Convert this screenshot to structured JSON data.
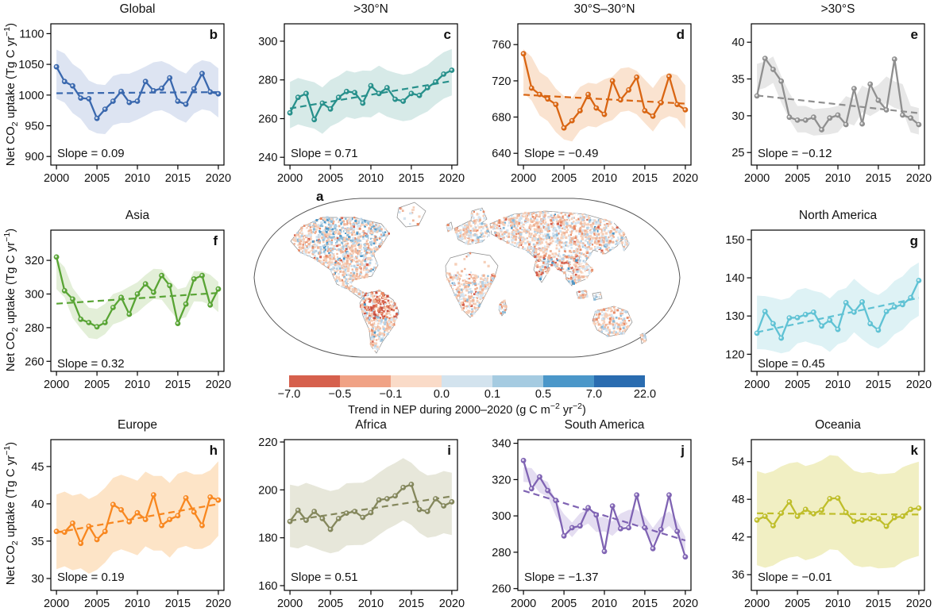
{
  "ylabel": {
    "pre": "Net CO",
    "sub": "2",
    "mid": " uptake (Tg C yr",
    "sup": "−1",
    "post": ")"
  },
  "chart_data": {
    "type": "line",
    "description": "Ten regional time series of net CO2 uptake (Tg C yr-1) 2000-2020 with confidence bands and dashed linear trends, plus central world map (panel a) of NEP trend.",
    "years": [
      2000,
      2001,
      2002,
      2003,
      2004,
      2005,
      2006,
      2007,
      2008,
      2009,
      2010,
      2011,
      2012,
      2013,
      2014,
      2015,
      2016,
      2017,
      2018,
      2019,
      2020
    ],
    "xticks": [
      "2000",
      "2005",
      "2010",
      "2015",
      "2020"
    ],
    "xlabel": "",
    "ylabel_text": "Net CO2 uptake (Tg C yr−1)",
    "panels": [
      {
        "id": "global",
        "title": "Global",
        "letter": "b",
        "slope": 0.09,
        "slope_label": "Slope = 0.09",
        "line_color": "#3a68ae",
        "band_color": "#dde4f2",
        "band_halfwidth": 40,
        "ylim": [
          886,
          1116
        ],
        "yticks": [
          900,
          950,
          1000,
          1050,
          1100
        ],
        "values": [
          1046,
          1022,
          1015,
          995,
          994,
          962,
          977,
          990,
          1006,
          988,
          990,
          1022,
          1007,
          1011,
          1028,
          990,
          985,
          1010,
          1035,
          1005,
          1002
        ]
      },
      {
        "id": "n30n",
        "title": ">30°N",
        "letter": "c",
        "slope": 0.71,
        "slope_label": "Slope = 0.71",
        "line_color": "#27908b",
        "band_color": "#d7eae8",
        "band_halfwidth": 12,
        "ylim": [
          236,
          309
        ],
        "yticks": [
          240,
          260,
          280,
          300
        ],
        "values": [
          263,
          271,
          273,
          259.5,
          268,
          265,
          271,
          274,
          273.5,
          268,
          277,
          273,
          276,
          270,
          269,
          273,
          272,
          276,
          279,
          283,
          285
        ]
      },
      {
        "id": "tropics",
        "title": "30°S–30°N",
        "letter": "d",
        "slope": -0.49,
        "slope_label": "Slope = −0.49",
        "line_color": "#d96512",
        "band_color": "#fae3d0",
        "band_halfwidth": 24,
        "ylim": [
          627,
          783
        ],
        "yticks": [
          640,
          680,
          720,
          760
        ],
        "values": [
          750,
          712,
          705,
          700,
          694,
          668,
          676,
          687,
          705,
          690,
          683,
          720,
          699,
          710,
          724,
          687,
          681,
          696,
          725,
          694,
          688
        ]
      },
      {
        "id": "s30s",
        "title": ">30°S",
        "letter": "e",
        "slope": -0.12,
        "slope_label": "Slope = −0.12",
        "line_color": "#8f8f8f",
        "band_color": "#e7e7e7",
        "band_halfwidth": 1.8,
        "ylim": [
          23.3,
          42.5
        ],
        "yticks": [
          25,
          30,
          35,
          40
        ],
        "values": [
          32.7,
          37.8,
          36.3,
          34.7,
          29.8,
          29.4,
          29.4,
          29.8,
          28.1,
          29.7,
          30.1,
          28.8,
          33.7,
          28.9,
          34.3,
          32.1,
          30.8,
          37.7,
          30.1,
          29.7,
          28.8
        ]
      },
      {
        "id": "asia",
        "title": "Asia",
        "letter": "f",
        "slope": 0.32,
        "slope_label": "Slope = 0.32",
        "line_color": "#58a434",
        "band_color": "#e3efd8",
        "band_halfwidth": 9,
        "ylim": [
          254,
          338
        ],
        "yticks": [
          260,
          280,
          300,
          320
        ],
        "values": [
          322,
          302,
          297,
          285,
          283,
          280.5,
          283,
          292,
          298,
          288,
          300,
          306,
          301,
          311,
          305,
          282.5,
          294,
          309,
          311,
          293.5,
          303
        ]
      },
      {
        "id": "north-america",
        "title": "North America",
        "letter": "g",
        "slope": 0.45,
        "slope_label": "Slope = 0.45",
        "line_color": "#5fc2d4",
        "band_color": "#def2f5",
        "band_halfwidth": 7,
        "ylim": [
          115.5,
          152.5
        ],
        "yticks": [
          120,
          130,
          140,
          150
        ],
        "values": [
          125.5,
          131.2,
          128,
          124.2,
          129.5,
          129.6,
          130.4,
          131,
          127.4,
          128.9,
          126.5,
          133.5,
          131,
          133.7,
          128,
          126.3,
          131.2,
          132.4,
          133,
          134.8,
          139.3
        ]
      },
      {
        "id": "europe",
        "title": "Europe",
        "letter": "h",
        "slope": 0.19,
        "slope_label": "Slope = 0.19",
        "line_color": "#f8871f",
        "band_color": "#fde4c7",
        "band_halfwidth": 5,
        "ylim": [
          28.4,
          48.6
        ],
        "yticks": [
          30,
          35,
          40,
          45
        ],
        "values": [
          36.3,
          36.2,
          37.4,
          34.7,
          37,
          35.2,
          36.3,
          39.9,
          39.2,
          37.6,
          38.8,
          37.9,
          41.2,
          37.1,
          37.9,
          38.4,
          40.8,
          38.9,
          37.1,
          40.9,
          40.5
        ]
      },
      {
        "id": "africa",
        "title": "Africa",
        "letter": "i",
        "slope": 0.51,
        "slope_label": "Slope = 0.51",
        "line_color": "#84875c",
        "band_color": "#e7e7da",
        "band_halfwidth": 13,
        "ylim": [
          158,
          221
        ],
        "yticks": [
          160,
          180,
          200,
          220
        ],
        "values": [
          186.8,
          191.5,
          187.3,
          191,
          188,
          183.5,
          188,
          190.3,
          191,
          188.5,
          190.5,
          195.8,
          196.3,
          197.5,
          201,
          202.3,
          191.8,
          191,
          196.3,
          193.3,
          195
        ]
      },
      {
        "id": "south-america",
        "title": "South America",
        "letter": "j",
        "slope": -1.37,
        "slope_label": "Slope = −1.37",
        "line_color": "#7f63b3",
        "band_color": "#e4ddf1",
        "band_halfwidth": 4,
        "ylim": [
          259,
          342
        ],
        "yticks": [
          260,
          280,
          300,
          320,
          340
        ],
        "values": [
          330.5,
          315,
          321.5,
          314,
          308.5,
          289,
          293.5,
          294.5,
          304.5,
          300.5,
          280.5,
          305.5,
          293,
          293.5,
          311.5,
          293.5,
          282,
          292.5,
          311.5,
          291.5,
          277.5
        ]
      },
      {
        "id": "oceania",
        "title": "Oceania",
        "letter": "k",
        "slope": -0.01,
        "slope_label": "Slope = −0.01",
        "line_color": "#bfbe2a",
        "band_color": "#f1efc3",
        "band_halfwidth": 7.5,
        "ylim": [
          33.5,
          57.5
        ],
        "yticks": [
          36,
          42,
          48,
          54
        ],
        "values": [
          44.7,
          45.3,
          43.8,
          45.8,
          47.6,
          45.3,
          46.4,
          45.7,
          46.3,
          48.1,
          48.2,
          45.9,
          44.5,
          44.7,
          44.9,
          44.9,
          43.7,
          45.1,
          45.3,
          46.4,
          46.6
        ]
      }
    ],
    "map": {
      "letter": "a",
      "colorbar": {
        "colors": [
          "#d6604d",
          "#f0a285",
          "#fadbc8",
          "#d3e3ee",
          "#a5cbe1",
          "#4b97c9",
          "#2a6cb0"
        ],
        "tick_labels": [
          "−7.0",
          "−0.5",
          "−0.1",
          "0.0",
          "0.1",
          "0.5",
          "7.0",
          "22.0"
        ],
        "caption": {
          "pre": "Trend in NEP during 2000–2020 (g C m",
          "sup1": "−2",
          "mid": " yr",
          "sup2": "−2",
          "post": ")"
        }
      },
      "speckle_colors": {
        "strong_red": "#d6604d",
        "red": "#e88a66",
        "pale_red": "#f6cfb8",
        "pale_red2": "#efb497",
        "pale_blue": "#d5e4f0",
        "pale_blue2": "#b5d0e4",
        "blue": "#8abbd9",
        "strong_blue": "#4d97c7"
      }
    }
  }
}
